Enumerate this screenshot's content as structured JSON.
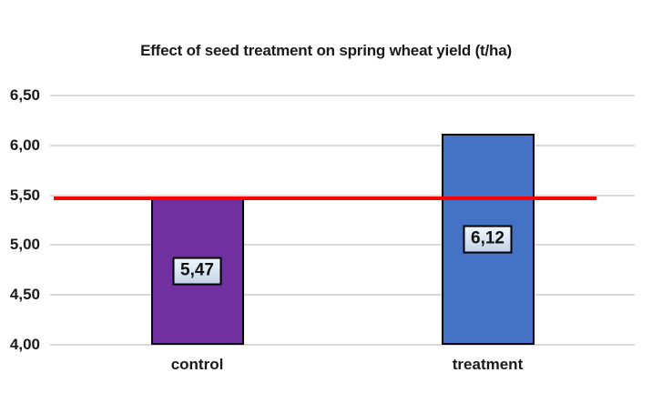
{
  "chart_data": {
    "type": "bar",
    "title": "Effect of seed treatment on spring wheat yield (t/ha)",
    "categories": [
      "control",
      "treatment"
    ],
    "values": [
      5.47,
      6.12
    ],
    "value_labels": [
      "5,47",
      "6,12"
    ],
    "bar_colors": [
      "#7030A0",
      "#4472C4"
    ],
    "bar_border_color": "#000000",
    "ylim": [
      4.0,
      6.5
    ],
    "ytick_values": [
      6.5,
      6.0,
      5.5,
      5.0,
      4.5,
      4.0
    ],
    "ytick_labels": [
      "6,50",
      "6,00",
      "5,50",
      "5,00",
      "4,50",
      "4,00"
    ],
    "reference_line": {
      "value": 5.47,
      "color": "#FF0000"
    },
    "gridline_color": "#D9D9D9",
    "legend": "none",
    "grid": "horizontal"
  }
}
